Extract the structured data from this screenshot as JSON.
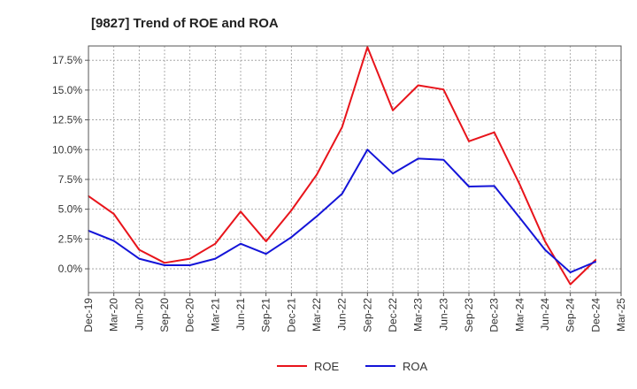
{
  "chart_data": {
    "type": "line",
    "title": "[9827]  Trend of ROE and ROA",
    "xlabel": "",
    "ylabel": "",
    "categories": [
      "Dec-19",
      "Mar-20",
      "Jun-20",
      "Sep-20",
      "Dec-20",
      "Mar-21",
      "Jun-21",
      "Sep-21",
      "Dec-21",
      "Mar-22",
      "Jun-22",
      "Sep-22",
      "Dec-22",
      "Mar-23",
      "Jun-23",
      "Sep-23",
      "Dec-23",
      "Mar-24",
      "Jun-24",
      "Sep-24",
      "Dec-24",
      "Mar-25"
    ],
    "ylim": [
      -2.0,
      18.7
    ],
    "y_ticks": [
      0.0,
      2.5,
      5.0,
      7.5,
      10.0,
      12.5,
      15.0,
      17.5
    ],
    "y_tick_labels": [
      "0.0%",
      "2.5%",
      "5.0%",
      "7.5%",
      "10.0%",
      "12.5%",
      "15.0%",
      "17.5%"
    ],
    "grid": true,
    "legend_position": "bottom",
    "series": [
      {
        "name": "ROE",
        "color": "#e8141b",
        "values": [
          6.1,
          4.6,
          1.6,
          0.5,
          0.85,
          2.1,
          4.8,
          2.3,
          4.9,
          7.9,
          11.9,
          18.6,
          13.3,
          15.4,
          15.05,
          10.7,
          11.45,
          7.1,
          2.3,
          -1.3,
          0.75,
          null
        ]
      },
      {
        "name": "ROA",
        "color": "#1414d8",
        "values": [
          3.2,
          2.35,
          0.85,
          0.3,
          0.3,
          0.85,
          2.1,
          1.25,
          2.65,
          4.4,
          6.3,
          10.0,
          8.0,
          9.25,
          9.15,
          6.9,
          6.95,
          4.3,
          1.6,
          -0.3,
          0.6,
          null
        ]
      }
    ]
  }
}
